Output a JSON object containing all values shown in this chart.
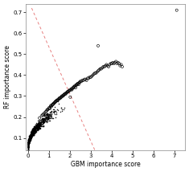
{
  "title": "",
  "xlabel": "GBM importance score",
  "ylabel": "RF importance score",
  "xlim": [
    -0.1,
    7.5
  ],
  "ylim": [
    0.04,
    0.74
  ],
  "xticks": [
    0,
    1,
    2,
    3,
    4,
    5,
    6,
    7
  ],
  "yticks": [
    0.1,
    0.2,
    0.3,
    0.4,
    0.5,
    0.6,
    0.7
  ],
  "dashed_line_color": "#e88080",
  "scatter_color": "#000000",
  "background_color": "#ffffff",
  "figsize": [
    2.35,
    2.14
  ],
  "dpi": 100,
  "seed": 42,
  "open_circle_points": [
    [
      0.55,
      0.195
    ],
    [
      0.65,
      0.205
    ],
    [
      0.7,
      0.21
    ],
    [
      0.75,
      0.215
    ],
    [
      0.8,
      0.22
    ],
    [
      0.85,
      0.225
    ],
    [
      0.9,
      0.23
    ],
    [
      0.92,
      0.235
    ],
    [
      0.95,
      0.235
    ],
    [
      1.0,
      0.24
    ],
    [
      1.02,
      0.245
    ],
    [
      1.05,
      0.24
    ],
    [
      1.08,
      0.25
    ],
    [
      1.1,
      0.255
    ],
    [
      1.12,
      0.25
    ],
    [
      1.15,
      0.255
    ],
    [
      1.18,
      0.26
    ],
    [
      1.2,
      0.26
    ],
    [
      1.22,
      0.265
    ],
    [
      1.25,
      0.265
    ],
    [
      1.28,
      0.27
    ],
    [
      1.3,
      0.27
    ],
    [
      1.32,
      0.275
    ],
    [
      1.35,
      0.275
    ],
    [
      1.38,
      0.28
    ],
    [
      1.4,
      0.28
    ],
    [
      1.42,
      0.28
    ],
    [
      1.45,
      0.285
    ],
    [
      1.48,
      0.285
    ],
    [
      1.5,
      0.29
    ],
    [
      1.52,
      0.29
    ],
    [
      1.55,
      0.29
    ],
    [
      1.58,
      0.295
    ],
    [
      1.6,
      0.295
    ],
    [
      1.62,
      0.3
    ],
    [
      1.65,
      0.3
    ],
    [
      1.68,
      0.3
    ],
    [
      1.7,
      0.305
    ],
    [
      1.72,
      0.305
    ],
    [
      1.75,
      0.31
    ],
    [
      1.78,
      0.31
    ],
    [
      1.8,
      0.31
    ],
    [
      1.82,
      0.315
    ],
    [
      1.85,
      0.315
    ],
    [
      1.88,
      0.32
    ],
    [
      1.9,
      0.32
    ],
    [
      1.92,
      0.32
    ],
    [
      1.95,
      0.325
    ],
    [
      1.98,
      0.325
    ],
    [
      2.0,
      0.33
    ],
    [
      2.02,
      0.295
    ],
    [
      2.05,
      0.33
    ],
    [
      2.08,
      0.335
    ],
    [
      2.1,
      0.33
    ],
    [
      2.12,
      0.335
    ],
    [
      2.15,
      0.34
    ],
    [
      2.18,
      0.34
    ],
    [
      2.2,
      0.345
    ],
    [
      2.22,
      0.345
    ],
    [
      2.25,
      0.35
    ],
    [
      2.28,
      0.34
    ],
    [
      2.3,
      0.35
    ],
    [
      2.32,
      0.355
    ],
    [
      2.35,
      0.355
    ],
    [
      2.38,
      0.36
    ],
    [
      2.4,
      0.36
    ],
    [
      2.42,
      0.355
    ],
    [
      2.45,
      0.365
    ],
    [
      2.48,
      0.365
    ],
    [
      2.5,
      0.37
    ],
    [
      2.55,
      0.37
    ],
    [
      2.6,
      0.375
    ],
    [
      2.65,
      0.375
    ],
    [
      2.7,
      0.38
    ],
    [
      2.75,
      0.38
    ],
    [
      2.8,
      0.375
    ],
    [
      2.85,
      0.385
    ],
    [
      2.9,
      0.385
    ],
    [
      2.95,
      0.39
    ],
    [
      3.0,
      0.39
    ],
    [
      3.05,
      0.395
    ],
    [
      3.1,
      0.4
    ],
    [
      3.15,
      0.405
    ],
    [
      3.2,
      0.41
    ],
    [
      3.25,
      0.41
    ],
    [
      3.3,
      0.415
    ],
    [
      3.35,
      0.42
    ],
    [
      3.4,
      0.425
    ],
    [
      3.45,
      0.43
    ],
    [
      3.5,
      0.43
    ],
    [
      3.55,
      0.435
    ],
    [
      3.6,
      0.44
    ],
    [
      3.65,
      0.44
    ],
    [
      3.7,
      0.445
    ],
    [
      3.75,
      0.45
    ],
    [
      3.8,
      0.445
    ],
    [
      3.85,
      0.44
    ],
    [
      3.9,
      0.45
    ],
    [
      3.95,
      0.455
    ],
    [
      4.0,
      0.455
    ],
    [
      4.05,
      0.46
    ],
    [
      4.1,
      0.455
    ],
    [
      4.15,
      0.46
    ],
    [
      4.2,
      0.465
    ],
    [
      4.25,
      0.455
    ],
    [
      4.3,
      0.46
    ],
    [
      4.35,
      0.455
    ],
    [
      4.4,
      0.445
    ],
    [
      4.45,
      0.45
    ],
    [
      4.5,
      0.44
    ],
    [
      3.35,
      0.54
    ],
    [
      7.1,
      0.71
    ]
  ],
  "n_dense": 1000,
  "line_x": [
    0.18,
    3.2
  ],
  "line_y": [
    0.72,
    0.04
  ]
}
